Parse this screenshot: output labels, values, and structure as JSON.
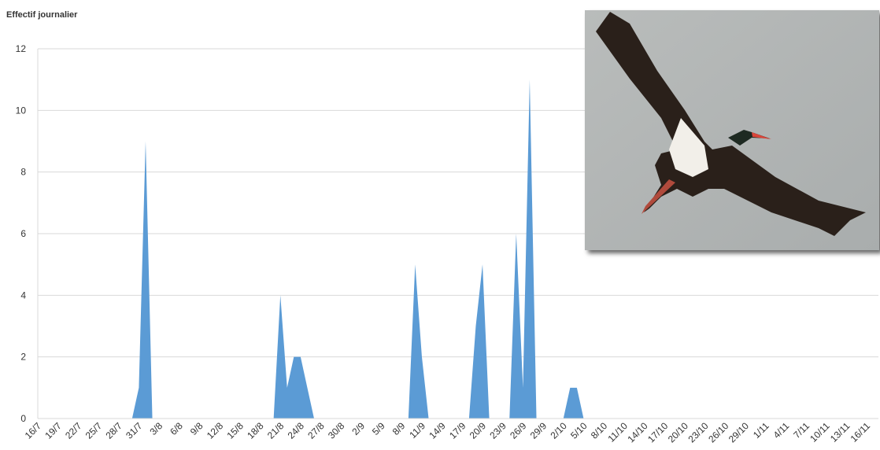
{
  "chart_data": {
    "type": "area",
    "title": "Effectif journalier",
    "color": "#5b9bd5",
    "grid": true,
    "ylim": [
      0,
      12
    ],
    "yticks": [
      0,
      2,
      4,
      6,
      8,
      10,
      12
    ],
    "categories": [
      "16/7",
      null,
      null,
      "19/7",
      null,
      null,
      "22/7",
      null,
      null,
      "25/7",
      null,
      null,
      "28/7",
      null,
      null,
      "31/7",
      null,
      null,
      "3/8",
      null,
      null,
      "6/8",
      null,
      null,
      "9/8",
      null,
      null,
      "12/8",
      null,
      null,
      "15/8",
      null,
      null,
      "18/8",
      null,
      null,
      "21/8",
      null,
      null,
      "24/8",
      null,
      null,
      "27/8",
      null,
      null,
      "30/8",
      null,
      null,
      "2/9",
      null,
      null,
      "5/9",
      null,
      null,
      "8/9",
      null,
      null,
      "11/9",
      null,
      null,
      "14/9",
      null,
      null,
      "17/9",
      null,
      null,
      "20/9",
      null,
      null,
      "23/9",
      null,
      null,
      "26/9",
      null,
      null,
      "29/9",
      null,
      null,
      "2/10",
      null,
      null,
      "5/10",
      null,
      null,
      "8/10",
      null,
      null,
      "11/10",
      null,
      null,
      "14/10",
      null,
      null,
      "17/10",
      null,
      null,
      "20/10",
      null,
      null,
      "23/10",
      null,
      null,
      "26/10",
      null,
      null,
      "29/10",
      null,
      null,
      "1/11",
      null,
      null,
      "4/11",
      null,
      null,
      "7/11",
      null,
      null,
      "10/11",
      null,
      null,
      "13/11",
      null,
      null,
      "16/11"
    ],
    "values": [
      0,
      0,
      0,
      0,
      0,
      0,
      0,
      0,
      0,
      0,
      0,
      0,
      0,
      0,
      0,
      1,
      9,
      0,
      0,
      0,
      0,
      0,
      0,
      0,
      0,
      0,
      0,
      0,
      0,
      0,
      0,
      0,
      0,
      0,
      0,
      0,
      4,
      1,
      2,
      2,
      1,
      0,
      0,
      0,
      0,
      0,
      0,
      0,
      0,
      0,
      0,
      0,
      0,
      0,
      0,
      0,
      5,
      2,
      0,
      0,
      0,
      0,
      0,
      0,
      0,
      3,
      5,
      0,
      0,
      0,
      0,
      6,
      1,
      11,
      0,
      0,
      0,
      0,
      0,
      1,
      1,
      0,
      0,
      0,
      0,
      0,
      0,
      0,
      0,
      0,
      0,
      0,
      0,
      0,
      0,
      0,
      0,
      0,
      0,
      0,
      0,
      0,
      0,
      0,
      0,
      0,
      0,
      0,
      0,
      0,
      0,
      0,
      0,
      0,
      0,
      0,
      0,
      0,
      0,
      0,
      0,
      0,
      0,
      0
    ]
  }
}
